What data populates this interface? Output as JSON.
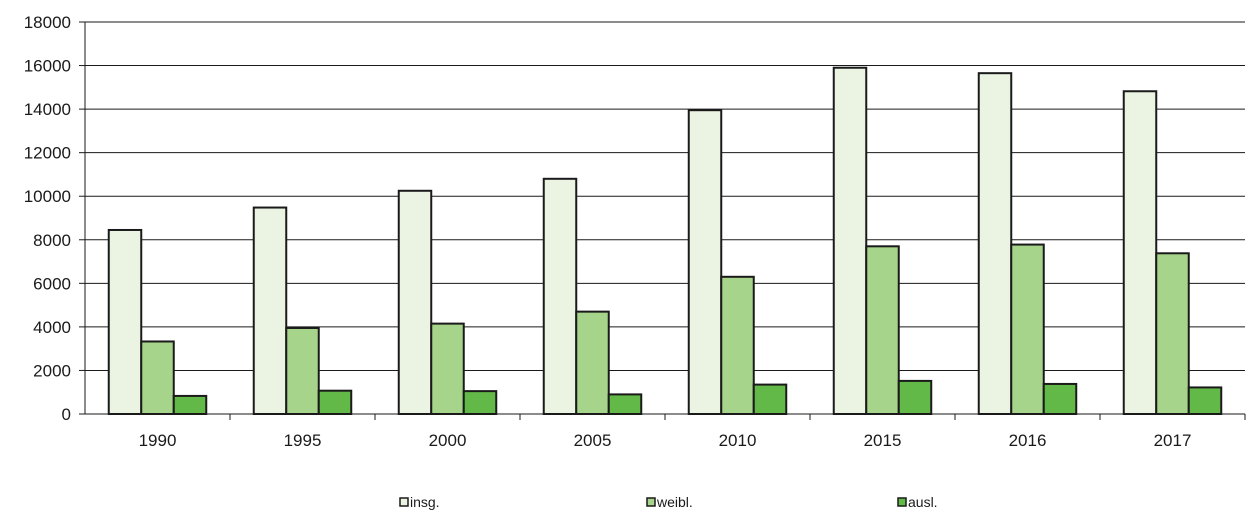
{
  "chart_data": {
    "type": "bar",
    "title": "",
    "xlabel": "",
    "ylabel": "",
    "categories": [
      "1990",
      "1995",
      "2000",
      "2005",
      "2010",
      "2015",
      "2016",
      "2017"
    ],
    "series": [
      {
        "name": "insg.",
        "color": "#ebf3e3",
        "values": [
          8450,
          9480,
          10250,
          10800,
          13950,
          15900,
          15650,
          14820
        ]
      },
      {
        "name": "weibl.",
        "color": "#a6d48a",
        "values": [
          3330,
          3950,
          4150,
          4700,
          6300,
          7700,
          7780,
          7380
        ]
      },
      {
        "name": "ausl.",
        "color": "#63b947",
        "values": [
          830,
          1070,
          1050,
          900,
          1350,
          1520,
          1380,
          1220
        ]
      }
    ],
    "ylim": [
      0,
      18000
    ],
    "yticks": [
      0,
      2000,
      4000,
      6000,
      8000,
      10000,
      12000,
      14000,
      16000,
      18000
    ],
    "grid": true,
    "legend_position": "bottom"
  }
}
